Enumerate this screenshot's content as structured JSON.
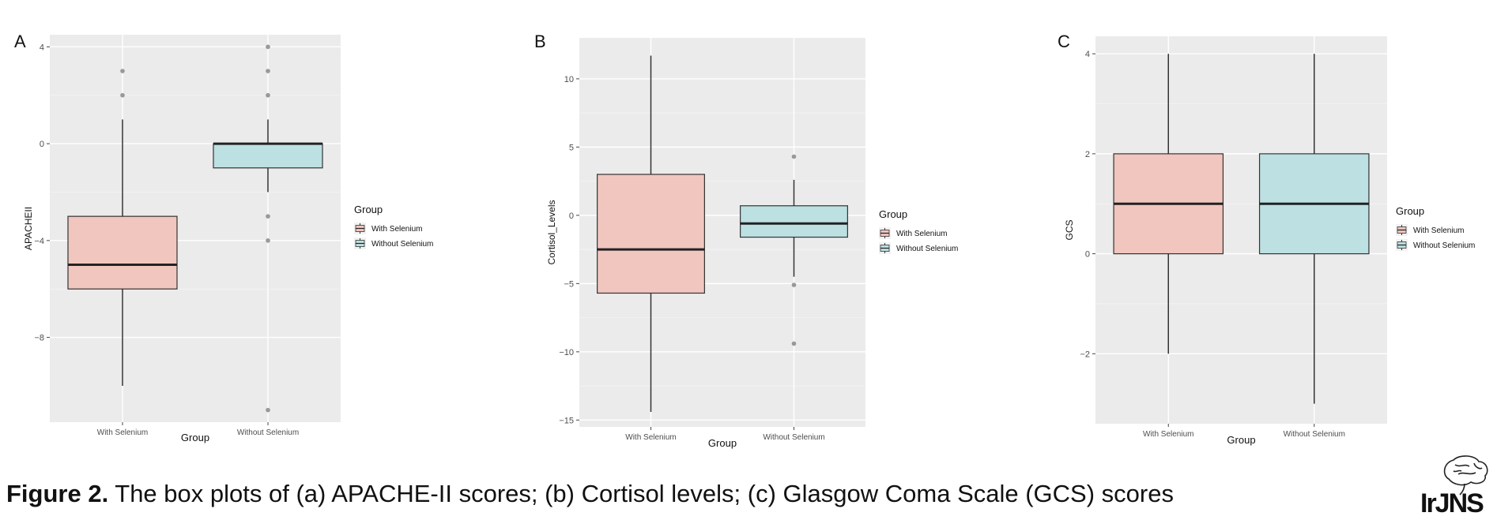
{
  "figure": {
    "caption_bold": "Figure 2.",
    "caption_text": " The box plots of (a) APACHE-II scores; (b) Cortisol levels; (c) Glasgow Coma Scale (GCS) scores",
    "logo_text": "IrJNS"
  },
  "colors": {
    "panel_bg": "#ebebeb",
    "grid_major": "#ffffff",
    "with_selenium_fill": "#f0c6bf",
    "without_selenium_fill": "#bde0e2",
    "box_stroke": "#333333",
    "outlier": "#7a7a7a"
  },
  "chart_data": [
    {
      "type": "box",
      "panel_label": "A",
      "xlabel": "Group",
      "ylabel": "APACHEII",
      "ylim": [
        -11.5,
        4.5
      ],
      "yticks": [
        4,
        0,
        -4,
        -8
      ],
      "categories": [
        "With Selenium",
        "Without Selenium"
      ],
      "legend": {
        "title": "Group",
        "entries": [
          "With Selenium",
          "Without Selenium"
        ],
        "placement": "right"
      },
      "boxes": [
        {
          "name": "With Selenium",
          "q1": -6,
          "median": -5,
          "q3": -3,
          "whisker_low": -10,
          "whisker_high": 1,
          "outliers": [
            2,
            3
          ]
        },
        {
          "name": "Without Selenium",
          "q1": -1,
          "median": 0,
          "q3": 0,
          "whisker_low": -2,
          "whisker_high": 1,
          "outliers": [
            2,
            3,
            4,
            -3,
            -4,
            -11
          ]
        }
      ]
    },
    {
      "type": "box",
      "panel_label": "B",
      "xlabel": "Group",
      "ylabel": "Cortisol_Levels",
      "ylim": [
        -15.5,
        13
      ],
      "yticks": [
        10,
        5,
        0,
        -5,
        -10,
        -15
      ],
      "categories": [
        "With Selenium",
        "Without Selenium"
      ],
      "legend": {
        "title": "Group",
        "entries": [
          "With Selenium",
          "Without Selenium"
        ],
        "placement": "right"
      },
      "boxes": [
        {
          "name": "With Selenium",
          "q1": -5.7,
          "median": -2.5,
          "q3": 3.0,
          "whisker_low": -14.4,
          "whisker_high": 11.7,
          "outliers": []
        },
        {
          "name": "Without Selenium",
          "q1": -1.6,
          "median": -0.6,
          "q3": 0.7,
          "whisker_low": -4.5,
          "whisker_high": 2.6,
          "outliers": [
            4.3,
            -5.1,
            -9.4
          ]
        }
      ]
    },
    {
      "type": "box",
      "panel_label": "C",
      "xlabel": "Group",
      "ylabel": "GCS",
      "ylim": [
        -3.4,
        4.35
      ],
      "yticks": [
        4,
        2,
        0,
        -2
      ],
      "categories": [
        "With Selenium",
        "Without Selenium"
      ],
      "legend": {
        "title": "Group",
        "entries": [
          "With Selenium",
          "Without Selenium"
        ],
        "placement": "right"
      },
      "boxes": [
        {
          "name": "With Selenium",
          "q1": 0,
          "median": 1,
          "q3": 2,
          "whisker_low": -2,
          "whisker_high": 4,
          "outliers": []
        },
        {
          "name": "Without Selenium",
          "q1": 0,
          "median": 1,
          "q3": 2,
          "whisker_low": -3,
          "whisker_high": 4,
          "outliers": []
        }
      ]
    }
  ]
}
